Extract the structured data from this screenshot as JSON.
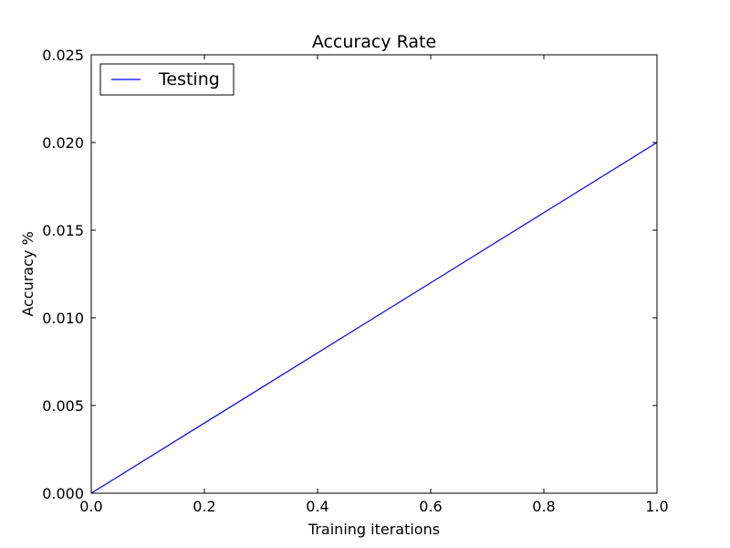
{
  "chart_data": {
    "type": "line",
    "title": "Accuracy Rate",
    "xlabel": "Training iterations",
    "ylabel": "Accuracy %",
    "xlim": [
      0.0,
      1.0
    ],
    "ylim": [
      0.0,
      0.025
    ],
    "xticks": [
      "0.0",
      "0.2",
      "0.4",
      "0.6",
      "0.8",
      "1.0"
    ],
    "yticks": [
      "0.000",
      "0.005",
      "0.010",
      "0.015",
      "0.020",
      "0.025"
    ],
    "grid": false,
    "legend_position": "top-left",
    "series": [
      {
        "name": "Testing",
        "color": "#0000ff",
        "x": [
          0.0,
          1.0
        ],
        "y": [
          0.0,
          0.02
        ]
      }
    ]
  }
}
